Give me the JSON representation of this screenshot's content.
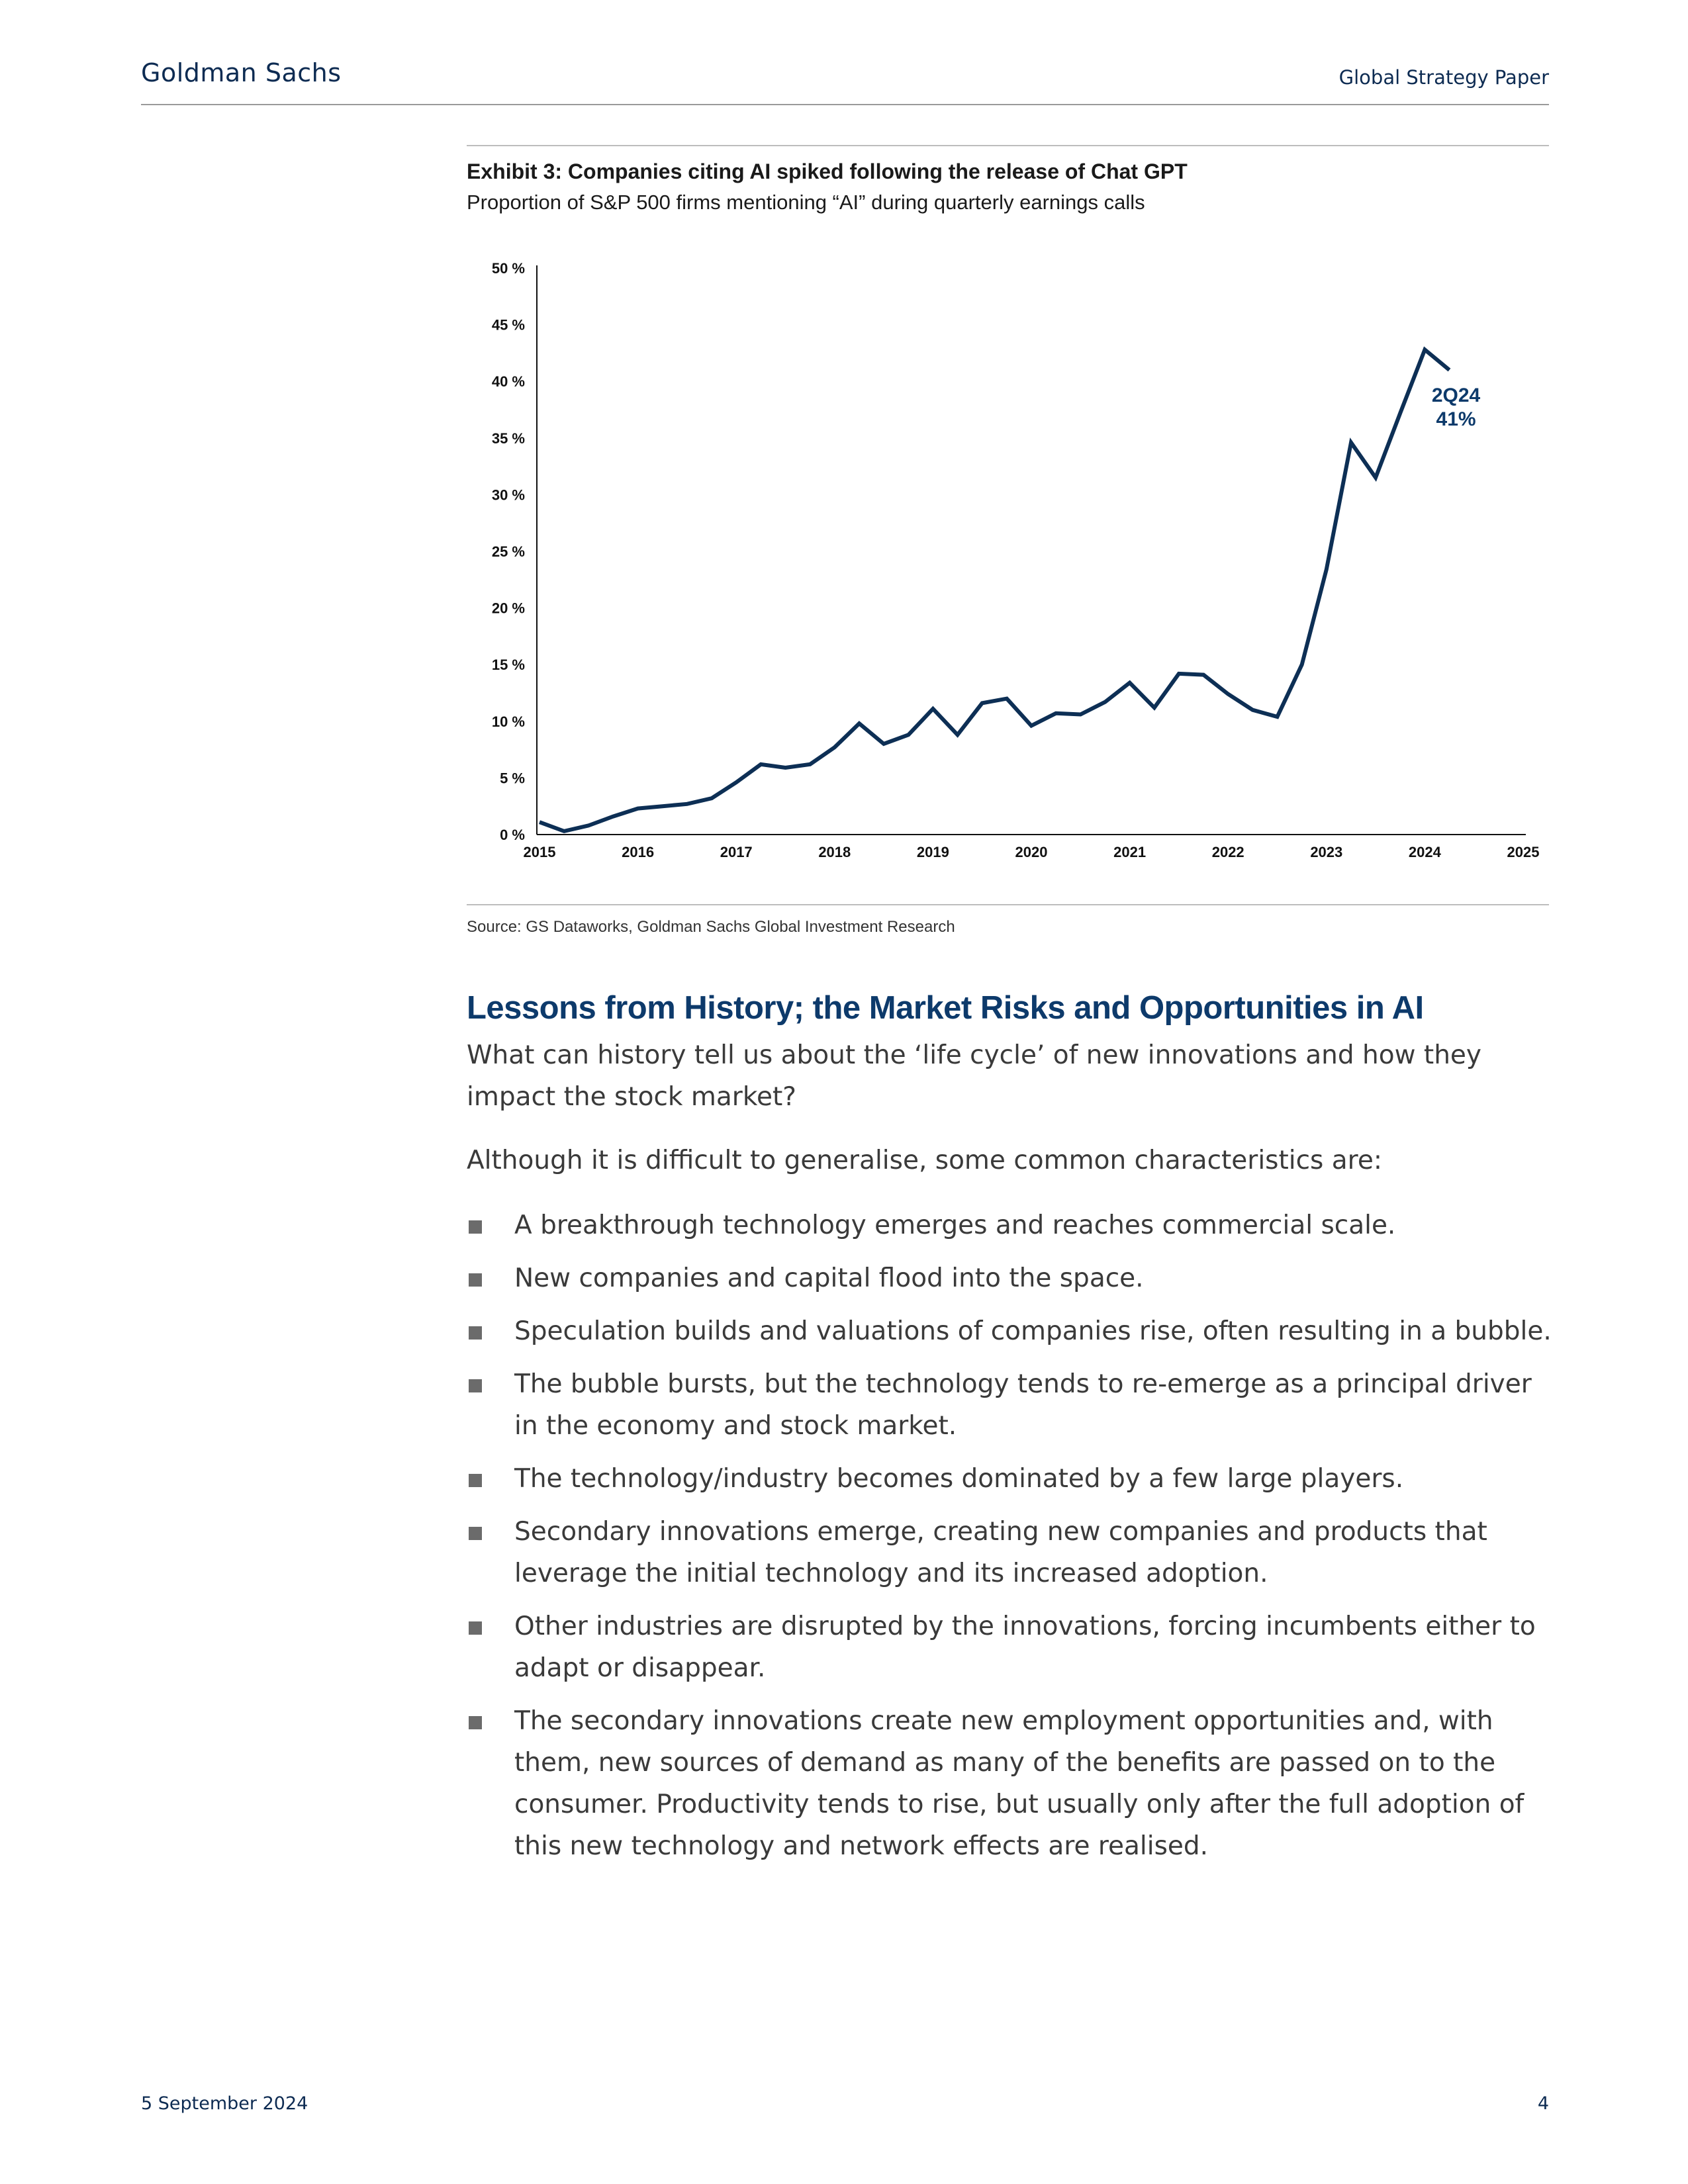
{
  "header": {
    "brand": "Goldman Sachs",
    "doc_type": "Global Strategy Paper"
  },
  "exhibit": {
    "title": "Exhibit 3: Companies citing AI spiked following the release of Chat GPT",
    "subtitle": "Proportion of S&P 500 firms mentioning “AI” during quarterly earnings calls",
    "source": "Source: GS Dataworks, Goldman Sachs Global Investment Research"
  },
  "chart_data": {
    "type": "line",
    "title": "Exhibit 3: Companies citing AI spiked following the release of Chat GPT",
    "subtitle": "Proportion of S&P 500 firms mentioning “AI” during quarterly earnings calls",
    "xlabel": "",
    "ylabel": "",
    "xlim": [
      2015,
      2025
    ],
    "ylim": [
      0,
      50
    ],
    "x_ticks": [
      "2015",
      "2016",
      "2017",
      "2018",
      "2019",
      "2020",
      "2021",
      "2022",
      "2023",
      "2024",
      "2025"
    ],
    "y_ticks": [
      "0 %",
      "5 %",
      "10 %",
      "15 %",
      "20 %",
      "25 %",
      "30 %",
      "35 %",
      "40 %",
      "45 %",
      "50 %"
    ],
    "grid": false,
    "legend": "none",
    "color": "#0d2f55",
    "annotation": {
      "line1": "2Q24",
      "line2": "41%",
      "x": 2024.25,
      "y": 41
    },
    "series": [
      {
        "x": [
          2015.0,
          2015.25,
          2015.5,
          2015.75,
          2016.0,
          2016.25,
          2016.5,
          2016.75,
          2017.0,
          2017.25,
          2017.5,
          2017.75,
          2018.0,
          2018.25,
          2018.5,
          2018.75,
          2019.0,
          2019.25,
          2019.5,
          2019.75,
          2020.0,
          2020.25,
          2020.5,
          2020.75,
          2021.0,
          2021.25,
          2021.5,
          2021.75,
          2022.0,
          2022.25,
          2022.5,
          2022.75,
          2023.0,
          2023.25,
          2023.5,
          2023.75,
          2024.0,
          2024.25
        ],
        "y": [
          1.1,
          0.3,
          0.8,
          1.6,
          2.3,
          2.5,
          2.7,
          3.2,
          4.6,
          6.2,
          5.9,
          6.2,
          7.7,
          9.8,
          8.0,
          8.8,
          11.1,
          8.8,
          11.6,
          12.0,
          9.6,
          10.7,
          10.6,
          11.7,
          13.4,
          11.2,
          14.2,
          14.1,
          12.4,
          11.0,
          10.4,
          15.0,
          23.4,
          34.6,
          31.5,
          37.2,
          42.8,
          41.0
        ]
      }
    ]
  },
  "section": {
    "title": "Lessons from History; the Market Risks and Opportunities in AI",
    "intro": "What can history tell us about the ‘life cycle’ of new innovations and how they impact the stock market?",
    "lead": "Although it is difficult to generalise, some common characteristics are:",
    "bullets": [
      "A breakthrough technology emerges and reaches commercial scale.",
      "New companies and capital flood into the space.",
      "Speculation builds and valuations of companies rise, often resulting in a bubble.",
      "The bubble bursts, but the technology tends to re-emerge as a principal driver in the economy and stock market.",
      "The technology/industry becomes dominated by a few large players.",
      "Secondary innovations emerge, creating new companies and products that leverage the initial technology and its increased adoption.",
      "Other industries are disrupted by the innovations, forcing incumbents either to adapt or disappear.",
      "The secondary innovations create new employment opportunities and, with them, new sources of demand as many of the benefits are passed on to the consumer. Productivity tends to rise, but usually only after the full adoption of this new technology and network effects are realised."
    ]
  },
  "footer": {
    "date": "5 September 2024",
    "page": "4"
  }
}
